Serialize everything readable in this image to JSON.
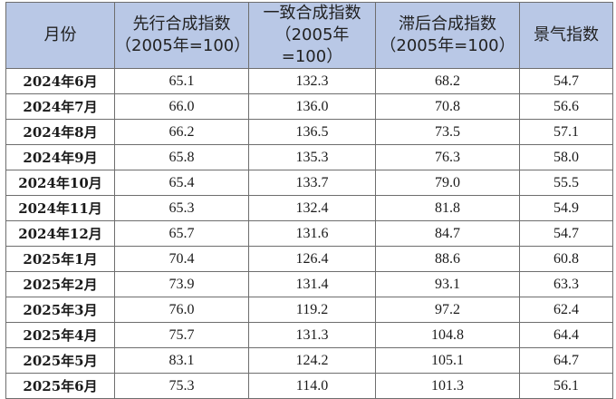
{
  "headers": [
    {
      "line1": "月份",
      "line2": ""
    },
    {
      "line1": "先行合成指数",
      "line2": "（2005年=100）"
    },
    {
      "line1": "一致合成指数",
      "line2": "（2005年=100）"
    },
    {
      "line1": "滞后合成指数",
      "line2": "（2005年=100）"
    },
    {
      "line1": "景气指数",
      "line2": ""
    }
  ],
  "rows": [
    {
      "month": "2024年6月",
      "leading": "65.1",
      "coincident": "132.3",
      "lagging": "68.2",
      "climate": "54.7"
    },
    {
      "month": "2024年7月",
      "leading": "66.0",
      "coincident": "136.0",
      "lagging": "70.8",
      "climate": "56.6"
    },
    {
      "month": "2024年8月",
      "leading": "66.2",
      "coincident": "136.5",
      "lagging": "73.5",
      "climate": "57.1"
    },
    {
      "month": "2024年9月",
      "leading": "65.8",
      "coincident": "135.3",
      "lagging": "76.3",
      "climate": "58.0"
    },
    {
      "month": "2024年10月",
      "leading": "65.4",
      "coincident": "133.7",
      "lagging": "79.0",
      "climate": "55.5"
    },
    {
      "month": "2024年11月",
      "leading": "65.3",
      "coincident": "132.4",
      "lagging": "81.8",
      "climate": "54.9"
    },
    {
      "month": "2024年12月",
      "leading": "65.7",
      "coincident": "131.6",
      "lagging": "84.7",
      "climate": "54.7"
    },
    {
      "month": "2025年1月",
      "leading": "70.4",
      "coincident": "126.4",
      "lagging": "88.6",
      "climate": "60.8"
    },
    {
      "month": "2025年2月",
      "leading": "73.9",
      "coincident": "131.4",
      "lagging": "93.1",
      "climate": "63.3"
    },
    {
      "month": "2025年3月",
      "leading": "76.0",
      "coincident": "119.2",
      "lagging": "97.2",
      "climate": "62.4"
    },
    {
      "month": "2025年4月",
      "leading": "75.7",
      "coincident": "131.3",
      "lagging": "104.8",
      "climate": "64.4"
    },
    {
      "month": "2025年5月",
      "leading": "83.1",
      "coincident": "124.2",
      "lagging": "105.1",
      "climate": "64.7"
    },
    {
      "month": "2025年6月",
      "leading": "75.3",
      "coincident": "114.0",
      "lagging": "101.3",
      "climate": "56.1"
    }
  ]
}
